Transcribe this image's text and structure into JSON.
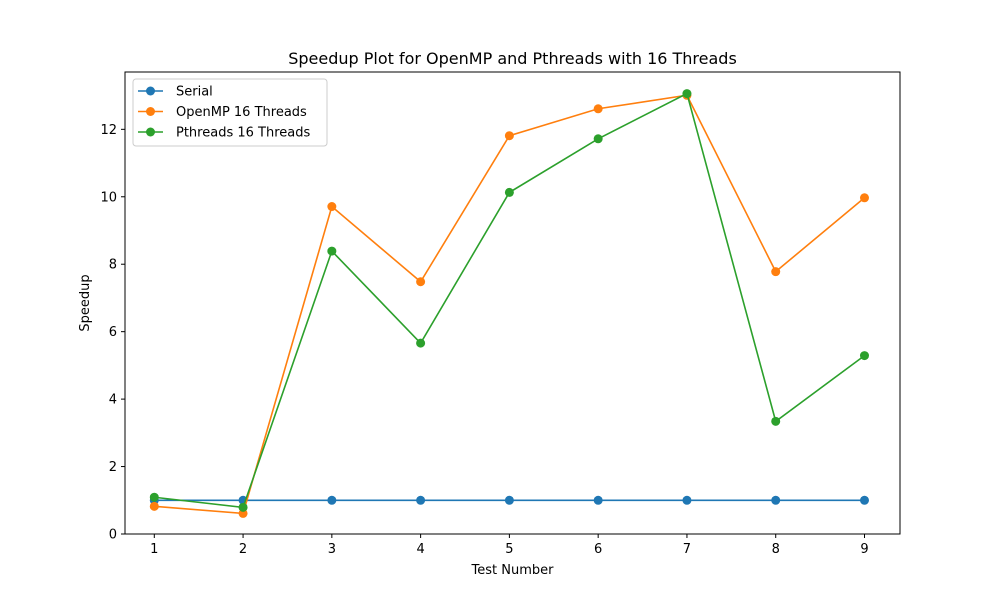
{
  "chart_data": {
    "type": "line",
    "title": "Speedup Plot for OpenMP and Pthreads with 16 Threads",
    "xlabel": "Test Number",
    "ylabel": "Speedup",
    "x": [
      1,
      2,
      3,
      4,
      5,
      6,
      7,
      8,
      9
    ],
    "xlim": [
      0.67,
      9.4
    ],
    "ylim": [
      0,
      13.7
    ],
    "xticks": [
      1,
      2,
      3,
      4,
      5,
      6,
      7,
      8,
      9
    ],
    "yticks": [
      0,
      2,
      4,
      6,
      8,
      10,
      12
    ],
    "grid": false,
    "legend_position": "upper-left",
    "series": [
      {
        "name": "Serial",
        "color": "#1f77b4",
        "marker": "circle",
        "values": [
          1,
          1,
          1,
          1,
          1,
          1,
          1,
          1,
          1
        ]
      },
      {
        "name": "OpenMP 16 Threads",
        "color": "#ff7f0e",
        "marker": "circle",
        "values": [
          0.82,
          0.61,
          9.71,
          7.48,
          11.81,
          12.61,
          13.01,
          7.78,
          9.97
        ]
      },
      {
        "name": "Pthreads 16 Threads",
        "color": "#2ca02c",
        "marker": "circle",
        "values": [
          1.09,
          0.79,
          8.39,
          5.66,
          10.13,
          11.72,
          13.06,
          3.34,
          5.29
        ]
      }
    ]
  }
}
